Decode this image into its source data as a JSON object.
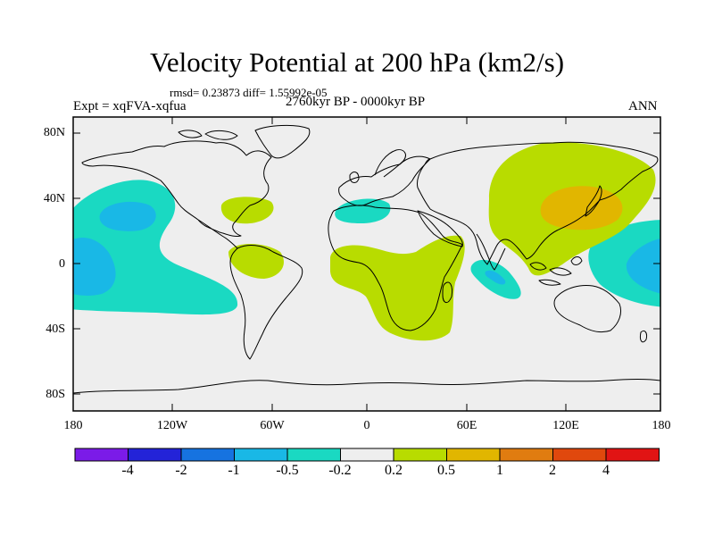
{
  "title": "Velocity Potential at 200 hPa (km2/s)",
  "stats_line": "rmsd= 0.23873 diff= 1.55992e-05",
  "experiment_label": "Expt = xqFVA-xqfua",
  "period_label": "2760kyr BP - 0000kyr BP",
  "season_label": "ANN",
  "lat_labels": [
    "80N",
    "40N",
    "0",
    "40S",
    "80S"
  ],
  "lon_labels": [
    "180",
    "120W",
    "60W",
    "0",
    "60E",
    "120E",
    "180"
  ],
  "colorbar": {
    "labels": [
      "-4",
      "-2",
      "-1",
      "-0.5",
      "-0.2",
      "0.2",
      "0.5",
      "1",
      "2",
      "4"
    ],
    "colors": [
      "#7b1be8",
      "#2323d8",
      "#1673e0",
      "#19b8e6",
      "#1ad9c2",
      "#eeeeee",
      "#b8dc00",
      "#e1b600",
      "#e07c10",
      "#e0480d",
      "#e11414"
    ]
  },
  "colors": {
    "background_field": "#eeeeee",
    "negative_weak": "#1ad9c2",
    "negative_moderate": "#19b8e6",
    "positive_weak": "#b8dc00",
    "positive_moderate": "#e1b600"
  }
}
